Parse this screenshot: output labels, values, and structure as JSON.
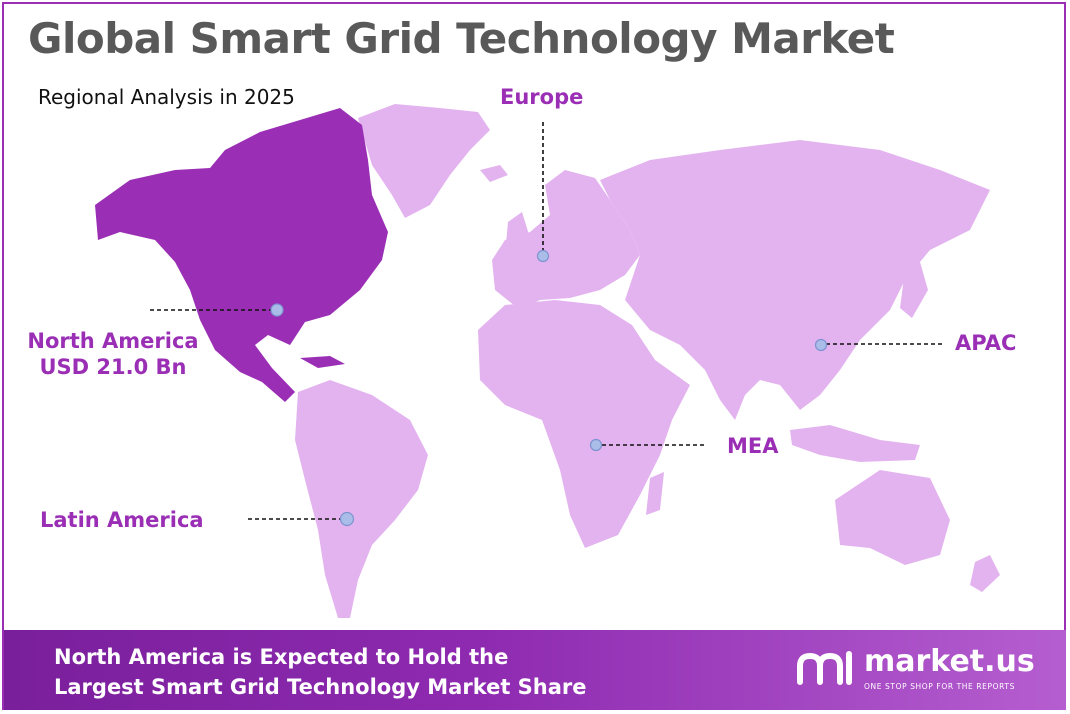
{
  "title": "Global Smart Grid Technology Market",
  "subtitle": "Regional Analysis in 2025",
  "colors": {
    "highlight_region": "#9a2fb5",
    "other_regions": "#e3b3ef",
    "label": "#9a2fb5",
    "marker": "#a9bde8"
  },
  "regions": [
    {
      "key": "north_america",
      "name": "North America",
      "value": "USD 21.0 Bn",
      "highlighted": true
    },
    {
      "key": "europe",
      "name": "Europe",
      "highlighted": false
    },
    {
      "key": "apac",
      "name": "APAC",
      "highlighted": false
    },
    {
      "key": "mea",
      "name": "MEA",
      "highlighted": false
    },
    {
      "key": "latin_america",
      "name": "Latin America",
      "highlighted": false
    }
  ],
  "footer": {
    "line1": "North America is Expected to Hold the",
    "line2": "Largest Smart Grid Technology Market Share"
  },
  "brand": {
    "name": "market.us",
    "tagline": "ONE STOP SHOP FOR THE REPORTS",
    "logo_icon": "market-us-logo-icon"
  }
}
